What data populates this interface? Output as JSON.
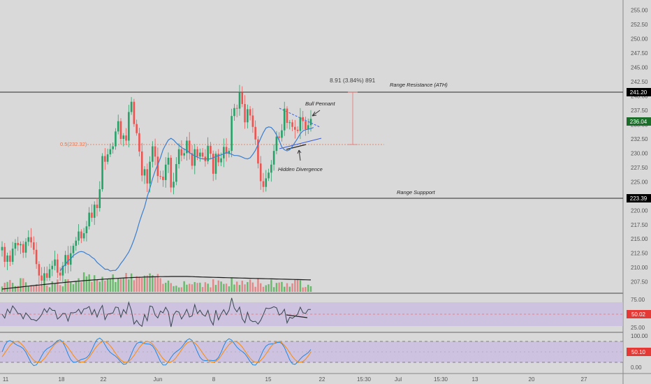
{
  "colors": {
    "background": "#d9d9d9",
    "up": "#26a269",
    "down": "#ef5350",
    "ma": "#3b7fd1",
    "fib": "#e8734a",
    "range_lines": "#2b2b2b",
    "resistance_badge": "#000000",
    "current_badge": "#1b6e2a",
    "osc_band": "#b39ddb",
    "osc_badge": "#e53935"
  },
  "price_axis": {
    "ticks": [
      "255.00",
      "252.50",
      "250.00",
      "247.50",
      "245.00",
      "242.50",
      "240.00",
      "237.50",
      "235.00",
      "232.50",
      "230.00",
      "227.50",
      "225.00",
      "222.50",
      "220.00",
      "217.50",
      "215.00",
      "212.50",
      "210.00",
      "207.50"
    ]
  },
  "badges": {
    "resistance": "241.20",
    "current": "236.04",
    "support": "223.39"
  },
  "annotations": {
    "measure": "8.91 (3.84%) 891",
    "range_resistance": "Range Resistance (ATH)",
    "range_support": "Range Suppport",
    "bull_pennant": "Bull Pennant",
    "hidden_divergence": "Hidden Divergence",
    "fib_label": "0.5(232.32)"
  },
  "rsi_panel": {
    "ticks": [
      "75.00",
      "50.00",
      "25.00"
    ],
    "value": "50.02"
  },
  "stoch_panel": {
    "ticks": [
      "100.00",
      "50.00",
      "0.00"
    ],
    "value": "50.10"
  },
  "time_axis": {
    "labels": [
      "11",
      "18",
      "22",
      "Jun",
      "8",
      "15",
      "22",
      "15:30",
      "Jul",
      "15:30",
      "13",
      "20",
      "27"
    ]
  },
  "chart_data": {
    "type": "candlestick",
    "price_range": [
      205.5,
      256.8
    ],
    "levels": {
      "resistance": 241.2,
      "support": 223.39,
      "fib_0_5": 232.32,
      "current": 236.04
    },
    "close_prices": [
      213.6,
      211.0,
      212.1,
      211.0,
      213.3,
      214.3,
      213.9,
      214.1,
      212.6,
      214.5,
      215.3,
      214.4,
      213.1,
      210.6,
      208.6,
      207.7,
      209.0,
      208.2,
      209.7,
      210.3,
      211.4,
      209.1,
      208.6,
      210.3,
      212.2,
      210.5,
      212.5,
      213.8,
      214.7,
      216.3,
      215.1,
      216.0,
      217.2,
      219.6,
      218.7,
      221.0,
      220.4,
      223.7,
      229.5,
      228.5,
      229.8,
      230.7,
      231.2,
      233.8,
      235.6,
      232.5,
      233.1,
      232.2,
      237.2,
      239.0,
      235.1,
      233.5,
      230.3,
      226.1,
      227.2,
      224.7,
      228.5,
      231.2,
      229.4,
      226.0,
      225.9,
      225.3,
      228.0,
      229.2,
      224.0,
      225.0,
      228.1,
      230.7,
      229.6,
      230.0,
      232.2,
      230.0,
      227.8,
      230.7,
      229.4,
      230.1,
      229.4,
      228.6,
      231.3,
      229.9,
      226.4,
      229.9,
      228.4,
      229.1,
      231.1,
      229.9,
      230.4,
      236.5,
      237.9,
      237.8,
      240.6,
      238.6,
      235.4,
      237.7,
      236.6,
      234.6,
      232.4,
      228.2,
      225.1,
      224.1,
      225.6,
      226.6,
      228.0,
      230.4,
      232.9,
      232.7,
      234.0,
      237.8,
      235.3,
      235.4,
      234.6,
      234.1,
      233.9,
      236.3,
      235.6,
      234.2,
      234.9,
      236.0
    ],
    "ma_series": [
      209.4,
      210.1,
      210.5,
      211.2,
      211.5,
      212.1,
      212.4,
      212.7,
      212.8,
      212.7,
      212.4,
      212.2,
      211.8,
      211.5,
      210.9,
      210.5,
      210.1,
      209.7,
      209.7,
      209.4,
      209.5,
      209.5,
      210.0,
      210.7,
      211.3,
      212.0,
      212.7,
      213.7,
      214.9,
      216.3,
      217.9,
      219.3,
      220.6,
      222.4,
      223.9,
      225.5,
      226.9,
      228.0,
      229.2,
      230.6,
      231.5,
      232.3,
      232.6,
      232.3,
      231.8,
      231.4,
      231.0,
      230.7,
      230.5,
      230.1,
      229.8,
      229.5,
      229.3,
      229.1,
      229.0,
      229.0,
      229.0,
      229.0,
      229.2,
      229.4,
      229.6,
      229.7,
      229.9,
      230.1,
      230.0,
      229.8,
      229.6,
      229.6,
      229.5,
      229.3,
      229.1,
      229.0,
      229.2,
      229.8,
      230.5,
      231.5,
      232.6,
      233.6,
      234.4,
      234.6,
      234.5,
      234.0,
      233.2,
      232.2,
      231.1,
      230.6,
      230.4,
      230.6,
      231.2,
      231.9,
      232.6,
      233.4,
      233.9,
      234.1,
      234.2,
      234.3,
      234.5
    ],
    "volume_avg_profile": "rising then flat",
    "rsi_value": 50.02,
    "stoch_value": 50.1
  }
}
